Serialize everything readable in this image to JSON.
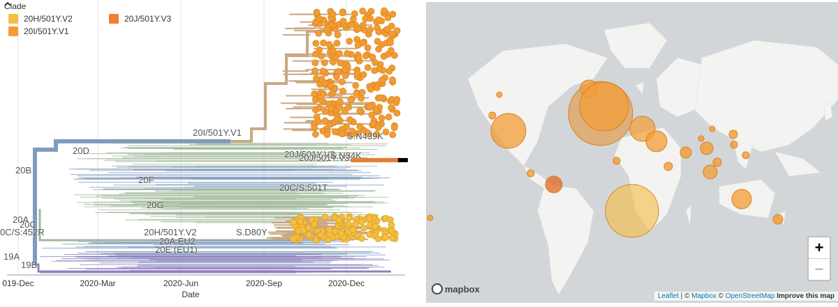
{
  "legend": {
    "title": "Clade",
    "toggle_icon": "chevron-up-icon",
    "items": [
      {
        "label": "20H/501Y.V2",
        "color": "#f5bd41"
      },
      {
        "label": "20I/501Y.V1",
        "color": "#f39c34"
      },
      {
        "label": "20J/501Y.V3",
        "color": "#f07f2f"
      }
    ]
  },
  "tree": {
    "x_axis_label": "Date",
    "x_ticks": [
      "019-Dec",
      "2020-Mar",
      "2020-Jun",
      "2020-Sep",
      "2020-Dec"
    ],
    "clade_labels": [
      "20I/501Y.V1",
      "S.N439K",
      "20D",
      "20J/501Y.V3",
      "20J/501Y.V3",
      "S.N34K",
      "20B",
      "20F",
      "20C/S:501T",
      "20G",
      "20A",
      "20C",
      "0C/S:452R",
      "20H/501Y.V2",
      "S.D80Y",
      "20A.EU2",
      "20E (EU1)",
      "19A",
      "19B"
    ],
    "colors": {
      "beige": "#c9a882",
      "blue_gray": "#7f9bbf",
      "sage": "#9fb998",
      "purple": "#8f7fc0",
      "gold": "#f5bd41",
      "orange": "#f39c34"
    }
  },
  "map": {
    "zoom_in": "+",
    "zoom_out": "−",
    "logo_text": "mapbox",
    "attribution": {
      "leaflet": "Leaflet",
      "sep1": " | © ",
      "mapbox": "Mapbox",
      "sep2": " © ",
      "osm": "OpenStreetMap",
      "improve": "Improve this map"
    }
  }
}
